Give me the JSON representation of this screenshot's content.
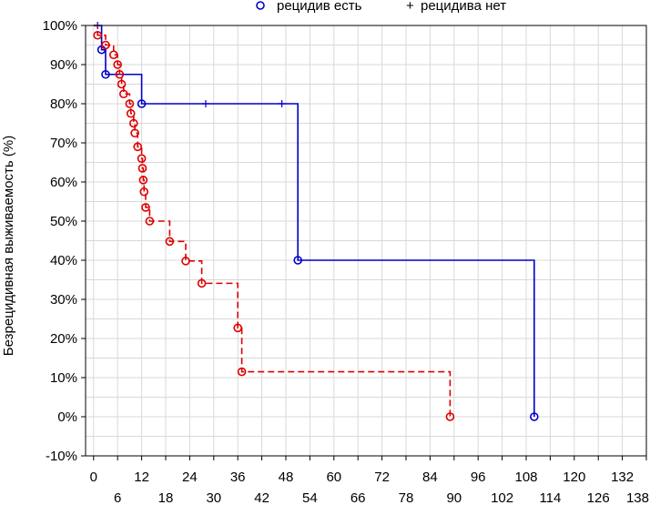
{
  "chart_data": {
    "type": "line",
    "subtype": "kaplan-meier",
    "title": "",
    "xlabel": "",
    "ylabel": "Безрецидивная выживаемость (%)",
    "xlim": [
      -2,
      138
    ],
    "ylim": [
      -10,
      100
    ],
    "x_ticks_top": [
      0,
      12,
      24,
      36,
      48,
      60,
      72,
      84,
      96,
      108,
      120,
      132
    ],
    "x_ticks_bottom": [
      6,
      18,
      30,
      42,
      54,
      66,
      78,
      90,
      102,
      114,
      126,
      138
    ],
    "y_ticks": [
      -10,
      0,
      10,
      20,
      30,
      40,
      50,
      60,
      70,
      80,
      90,
      100
    ],
    "y_tick_labels": [
      "-10%",
      "0%",
      "10%",
      "20%",
      "30%",
      "40%",
      "50%",
      "60%",
      "70%",
      "80%",
      "90%",
      "100%"
    ],
    "grid": true,
    "legend_position": "top",
    "legend": {
      "complete_label": "рецидив есть",
      "censored_label": "рецидива нет",
      "complete_symbol": "o",
      "censored_symbol": "+"
    },
    "series": [
      {
        "color": "#0000cc",
        "dash": "solid",
        "steps": [
          [
            0,
            100
          ],
          [
            2,
            93.8
          ],
          [
            3,
            87.5
          ],
          [
            12,
            80.0
          ],
          [
            51,
            40.0
          ],
          [
            110,
            0
          ]
        ],
        "complete": [
          [
            2,
            93.8
          ],
          [
            3,
            87.5
          ],
          [
            12,
            80.0
          ],
          [
            51,
            40.0
          ],
          [
            110,
            0
          ]
        ],
        "censored": [
          [
            1,
            100
          ],
          [
            28,
            80.0
          ],
          [
            47,
            80.0
          ]
        ]
      },
      {
        "color": "#dd0000",
        "dash": "dashed",
        "steps": [
          [
            0,
            100
          ],
          [
            1,
            97.5
          ],
          [
            3,
            95.0
          ],
          [
            5,
            92.5
          ],
          [
            6,
            90.0
          ],
          [
            6.5,
            87.5
          ],
          [
            7,
            85.0
          ],
          [
            7.5,
            82.5
          ],
          [
            9,
            80.0
          ],
          [
            9.3,
            77.5
          ],
          [
            10,
            75.0
          ],
          [
            10.3,
            72.5
          ],
          [
            11,
            69.0
          ],
          [
            12,
            66.0
          ],
          [
            12.2,
            63.5
          ],
          [
            12.4,
            60.5
          ],
          [
            12.6,
            57.5
          ],
          [
            13,
            53.5
          ],
          [
            14,
            50.0
          ],
          [
            19,
            44.8
          ],
          [
            23,
            39.8
          ],
          [
            27,
            34.1
          ],
          [
            36,
            22.7
          ],
          [
            37,
            11.5
          ],
          [
            89,
            0
          ]
        ],
        "complete": [
          [
            1,
            97.5
          ],
          [
            3,
            95.0
          ],
          [
            5,
            92.5
          ],
          [
            6,
            90.0
          ],
          [
            6.5,
            87.5
          ],
          [
            7,
            85.0
          ],
          [
            7.5,
            82.5
          ],
          [
            9,
            80.0
          ],
          [
            9.3,
            77.5
          ],
          [
            10,
            75.0
          ],
          [
            10.3,
            72.5
          ],
          [
            11,
            69.0
          ],
          [
            12,
            66.0
          ],
          [
            12.2,
            63.5
          ],
          [
            12.4,
            60.5
          ],
          [
            12.6,
            57.5
          ],
          [
            13,
            53.5
          ],
          [
            14,
            50.0
          ],
          [
            19,
            44.8
          ],
          [
            23,
            39.8
          ],
          [
            27,
            34.1
          ],
          [
            36,
            22.7
          ],
          [
            37,
            11.5
          ],
          [
            89,
            0
          ]
        ],
        "censored": []
      }
    ]
  }
}
